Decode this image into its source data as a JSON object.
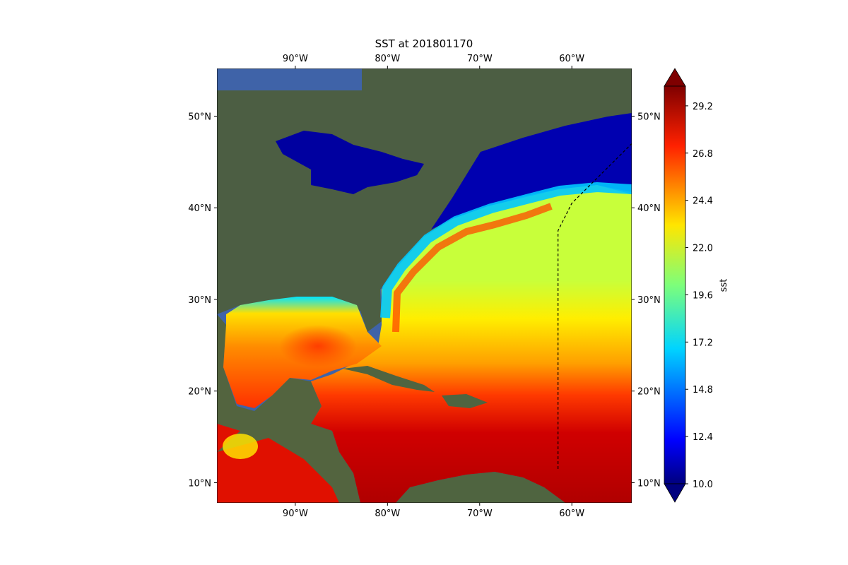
{
  "chart_data": {
    "type": "heatmap",
    "title": "SST at 201801170",
    "map_extent": {
      "lon": [
        -98.5,
        -53.5
      ],
      "lat": [
        7.8,
        55.2
      ]
    },
    "x_ticks": [
      {
        "value": -90,
        "label": "90°W"
      },
      {
        "value": -80,
        "label": "80°W"
      },
      {
        "value": -70,
        "label": "70°W"
      },
      {
        "value": -60,
        "label": "60°W"
      }
    ],
    "y_ticks": [
      {
        "value": 10,
        "label": "10°N"
      },
      {
        "value": 20,
        "label": "20°N"
      },
      {
        "value": 30,
        "label": "30°N"
      },
      {
        "value": 40,
        "label": "40°N"
      },
      {
        "value": 50,
        "label": "50°N"
      }
    ],
    "colorbar": {
      "label": "sst",
      "range": [
        10.0,
        30.2
      ],
      "ticks": [
        {
          "value": 10.0,
          "label": "10.0"
        },
        {
          "value": 12.4,
          "label": "12.4"
        },
        {
          "value": 14.8,
          "label": "14.8"
        },
        {
          "value": 17.2,
          "label": "17.2"
        },
        {
          "value": 19.6,
          "label": "19.6"
        },
        {
          "value": 22.0,
          "label": "22.0"
        },
        {
          "value": 24.4,
          "label": "24.4"
        },
        {
          "value": 26.8,
          "label": "26.8"
        },
        {
          "value": 29.2,
          "label": "29.2"
        }
      ],
      "colormap": "jet",
      "extend": "both"
    },
    "boundary_line": {
      "style": "dashed",
      "points": [
        [
          -61.5,
          11.5
        ],
        [
          -61.5,
          37.5
        ],
        [
          -60.0,
          40.5
        ],
        [
          -58.0,
          42.5
        ],
        [
          -53.5,
          47.0
        ]
      ]
    }
  },
  "colors": {
    "land": "#4c5e43",
    "land_light": "#6b7356",
    "ocean_base": "#3f63a8"
  }
}
